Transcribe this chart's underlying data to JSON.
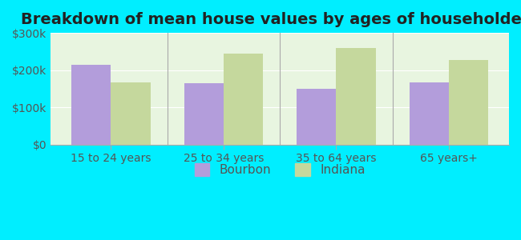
{
  "title": "Breakdown of mean house values by ages of householders",
  "categories": [
    "15 to 24 years",
    "25 to 34 years",
    "35 to 64 years",
    "65 years+"
  ],
  "bourbon_values": [
    215000,
    165000,
    150000,
    168000
  ],
  "indiana_values": [
    168000,
    245000,
    260000,
    228000
  ],
  "bourbon_color": "#b39ddb",
  "indiana_color": "#c5d89d",
  "background_color": "#00eeff",
  "plot_bg_start": "#e8f5e0",
  "plot_bg_end": "#f5fff0",
  "ylim": [
    0,
    300000
  ],
  "yticks": [
    0,
    100000,
    200000,
    300000
  ],
  "ytick_labels": [
    "$0",
    "$100k",
    "$200k",
    "$300k"
  ],
  "legend_labels": [
    "Bourbon",
    "Indiana"
  ],
  "title_fontsize": 14,
  "tick_fontsize": 10,
  "legend_fontsize": 11,
  "bar_width": 0.35
}
